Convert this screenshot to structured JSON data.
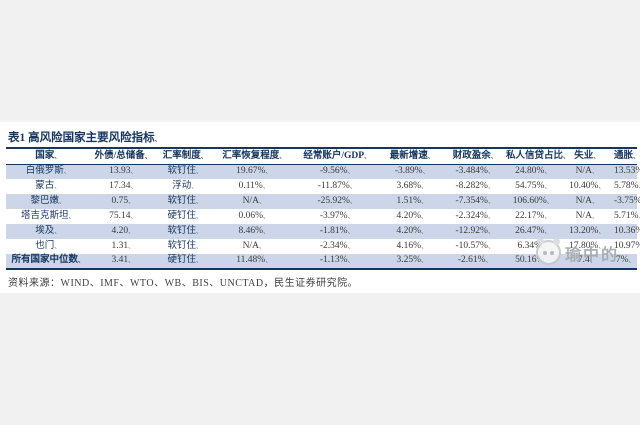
{
  "page": {
    "background_color": "#f1f1f2",
    "panel_color": "#ffffff"
  },
  "table": {
    "title": "表1 高风险国家主要风险指标",
    "cell_suffix": "、",
    "columns": [
      "国家",
      "外债/总储备",
      "汇率制度",
      "汇率恢复程度",
      "经常账户/GDP",
      "最新增速",
      "财政盈余",
      "私人信贷占比",
      "失业",
      "通胀"
    ],
    "rows": [
      {
        "striped": true,
        "bold": false,
        "cells": [
          "白俄罗斯",
          "13.93",
          "软钉住",
          "19.67%",
          "-9.56%",
          "-3.89%",
          "-3.484%",
          "24.80%",
          "N/A",
          "13.53%"
        ]
      },
      {
        "striped": false,
        "bold": false,
        "cells": [
          "蒙古",
          "17.34",
          "浮动",
          "0.11%",
          "-11.87%",
          "3.68%",
          "-8.282%",
          "54.75%",
          "10.40%",
          "5.78%"
        ]
      },
      {
        "striped": true,
        "bold": false,
        "cells": [
          "黎巴嫩",
          "0.75",
          "软钉住",
          "N/A",
          "-25.92%",
          "1.51%",
          "-7.354%",
          "106.60%",
          "N/A",
          "-3.75%"
        ]
      },
      {
        "striped": false,
        "bold": false,
        "cells": [
          "塔吉克斯坦",
          "75.14",
          "硬钉住",
          "0.06%",
          "-3.97%",
          "4.20%",
          "-2.324%",
          "22.17%",
          "N/A",
          "5.71%"
        ]
      },
      {
        "striped": true,
        "bold": false,
        "cells": [
          "埃及",
          "4.20",
          "软钉住",
          "8.46%",
          "-1.81%",
          "4.20%",
          "-12.92%",
          "26.47%",
          "13.20%",
          "10.36%"
        ]
      },
      {
        "striped": false,
        "bold": false,
        "cells": [
          "也门",
          "1.31",
          "软钉住",
          "N/A",
          "-2.34%",
          "4.16%",
          "-10.57%",
          "6.34%",
          "17.80%",
          "10.97%"
        ]
      },
      {
        "striped": true,
        "bold": true,
        "cells": [
          "所有国家中位数",
          "3.41",
          "硬钉住",
          "11.48%",
          "-1.13%",
          "3.25%",
          "-2.61%",
          "50.16%",
          "7.4",
          "7%"
        ]
      }
    ],
    "colors": {
      "header_text": "#17365d",
      "stripe": "#ccd6e8",
      "border": "#17365d",
      "number_text": "#3b3b3b"
    }
  },
  "source_note": "资料来源：WIND、IMF、WTO、WB、BIS、UNCTAD，民生证券研究院。",
  "watermark": {
    "text": "瑜中的",
    "logo": "panda-face-icon",
    "color": "#a3a8af"
  }
}
